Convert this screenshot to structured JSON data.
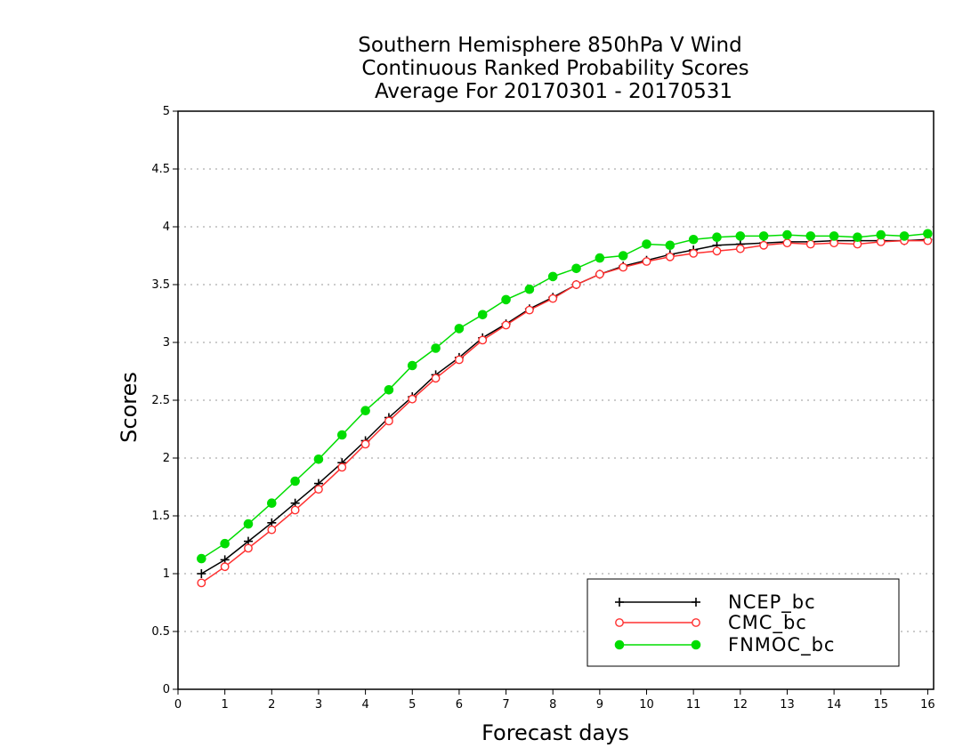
{
  "title_lines": [
    "Southern Hemisphere 850hPa V Wind",
    "Continuous Ranked Probability Scores",
    "Average For 20170301 - 20170531"
  ],
  "chart_data": {
    "type": "line",
    "xlabel": "Forecast days",
    "ylabel": "Scores",
    "xlim": [
      0,
      16.125
    ],
    "ylim": [
      0,
      5
    ],
    "x_ticks": [
      "0",
      "1",
      "2",
      "3",
      "4",
      "5",
      "6",
      "7",
      "8",
      "9",
      "10",
      "11",
      "12",
      "13",
      "14",
      "15",
      "16"
    ],
    "y_ticks": [
      "0",
      "0.5",
      "1",
      "1.5",
      "2",
      "2.5",
      "3",
      "3.5",
      "4",
      "4.5",
      "5"
    ],
    "y_tick_values": [
      0,
      0.5,
      1,
      1.5,
      2,
      2.5,
      3,
      3.5,
      4,
      4.5,
      5
    ],
    "grid": true,
    "legend_position": "bottom-right",
    "x": [
      0.5,
      1,
      1.5,
      2,
      2.5,
      3,
      3.5,
      4,
      4.5,
      5,
      5.5,
      6,
      6.5,
      7,
      7.5,
      8,
      8.5,
      9,
      9.5,
      10,
      10.5,
      11,
      11.5,
      12,
      12.5,
      13,
      13.5,
      14,
      14.5,
      15,
      15.5,
      16
    ],
    "series": [
      {
        "name": "NCEP_bc",
        "color": "#000000",
        "marker": "plus",
        "values": [
          1.0,
          1.12,
          1.28,
          1.44,
          1.61,
          1.78,
          1.96,
          2.15,
          2.35,
          2.53,
          2.72,
          2.87,
          3.04,
          3.16,
          3.29,
          3.39,
          3.5,
          3.59,
          3.66,
          3.71,
          3.76,
          3.8,
          3.84,
          3.85,
          3.86,
          3.87,
          3.87,
          3.88,
          3.88,
          3.88,
          3.88,
          3.89
        ]
      },
      {
        "name": "CMC_bc",
        "color": "#ff3030",
        "marker": "circle-open",
        "values": [
          0.92,
          1.06,
          1.22,
          1.38,
          1.55,
          1.73,
          1.92,
          2.12,
          2.32,
          2.51,
          2.69,
          2.85,
          3.02,
          3.15,
          3.28,
          3.38,
          3.5,
          3.59,
          3.65,
          3.7,
          3.74,
          3.77,
          3.79,
          3.81,
          3.84,
          3.86,
          3.85,
          3.86,
          3.85,
          3.87,
          3.88,
          3.88
        ]
      },
      {
        "name": "FNMOC_bc",
        "color": "#00dd00",
        "marker": "circle-filled",
        "values": [
          1.13,
          1.26,
          1.43,
          1.61,
          1.8,
          1.99,
          2.2,
          2.41,
          2.59,
          2.8,
          2.95,
          3.12,
          3.24,
          3.37,
          3.46,
          3.57,
          3.64,
          3.73,
          3.75,
          3.85,
          3.84,
          3.89,
          3.91,
          3.92,
          3.92,
          3.93,
          3.92,
          3.92,
          3.91,
          3.93,
          3.92,
          3.94
        ]
      }
    ]
  }
}
